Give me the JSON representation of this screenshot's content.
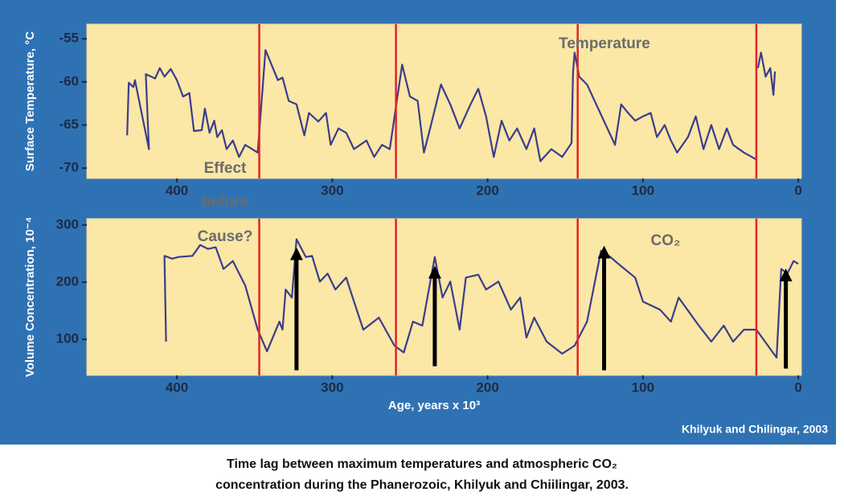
{
  "chart_data": [
    {
      "type": "line",
      "ylabel": "Surface Temperature, °C",
      "xlim": [
        458,
        -2
      ],
      "ylim": [
        -71.2,
        -53.3
      ],
      "xticks": [
        400,
        300,
        200,
        100,
        0
      ],
      "yticks": [
        -55,
        -60,
        -65,
        -70
      ],
      "plot_color": "#fbe7a6",
      "series": [
        {
          "color": "#3a3d8c",
          "x": [
            432,
            431,
            428,
            427,
            418,
            420,
            414,
            411,
            408,
            404,
            400,
            396,
            392,
            389,
            384,
            382,
            379,
            376,
            374,
            371,
            368,
            364,
            360,
            356,
            348,
            343,
            335,
            332,
            328,
            323,
            318,
            315,
            309,
            304,
            301,
            296,
            291,
            286,
            278,
            273,
            268,
            263,
            255,
            250,
            245,
            241,
            237,
            230,
            224,
            218,
            211,
            206,
            201,
            196,
            191,
            186,
            181,
            175,
            170,
            166,
            159,
            152,
            146,
            145,
            144,
            141,
            136,
            118,
            114,
            110,
            105,
            100,
            95,
            91,
            86,
            82,
            78,
            71,
            66,
            61,
            56,
            51,
            46,
            42,
            35,
            27,
            27,
            26,
            24,
            21,
            18,
            16,
            15
          ],
          "values": [
            -66.2,
            -60.1,
            -60.6,
            -59.8,
            -67.8,
            -59.1,
            -59.6,
            -58.4,
            -59.4,
            -58.5,
            -59.8,
            -61.7,
            -61.3,
            -65.7,
            -65.6,
            -63.1,
            -65.9,
            -64.5,
            -66.4,
            -65.6,
            -67.8,
            -66.8,
            -68.7,
            -67.3,
            -68.2,
            -56.3,
            -59.8,
            -59.5,
            -62.2,
            -62.6,
            -66.2,
            -63.6,
            -64.6,
            -63.6,
            -67.3,
            -65.4,
            -65.9,
            -67.8,
            -66.8,
            -68.7,
            -67.3,
            -67.8,
            -58.0,
            -61.7,
            -62.2,
            -68.2,
            -65.4,
            -60.3,
            -62.6,
            -65.4,
            -62.6,
            -60.8,
            -64.0,
            -68.7,
            -64.5,
            -66.8,
            -65.4,
            -67.8,
            -65.4,
            -69.2,
            -67.8,
            -68.7,
            -67.1,
            -58.9,
            -56.6,
            -59.4,
            -60.3,
            -67.3,
            -62.6,
            -63.5,
            -64.5,
            -64.0,
            -63.6,
            -66.4,
            -65.0,
            -66.8,
            -68.2,
            -66.4,
            -64.0,
            -67.8,
            -65.0,
            -67.8,
            -65.4,
            -67.3,
            -68.2,
            -69.0,
            null,
            -58.4,
            -56.6,
            -59.4,
            -58.4,
            -61.5,
            -58.8
          ]
        }
      ],
      "vlines": {
        "color": "#e0242a",
        "x": [
          347,
          259,
          142,
          27
        ]
      },
      "annotations": [
        "Temperature",
        "Effect",
        "before"
      ]
    },
    {
      "type": "line",
      "ylabel": "Volume Concentration, 10⁻⁴",
      "xlabel": "Age, years x 10³",
      "xlim": [
        458,
        -2
      ],
      "ylim": [
        37,
        311
      ],
      "xticks": [
        400,
        300,
        200,
        100,
        0
      ],
      "yticks": [
        300,
        200,
        100
      ],
      "plot_color": "#fbe7a6",
      "series": [
        {
          "color": "#3a3d8c",
          "x": [
            407,
            408,
            403,
            399,
            390,
            385,
            380,
            375,
            370,
            364,
            356,
            348,
            342,
            334,
            332,
            330,
            326,
            323,
            317,
            313,
            308,
            303,
            298,
            291,
            286,
            280,
            270,
            260,
            254,
            248,
            242,
            234,
            229,
            224,
            218,
            214,
            206,
            201,
            193,
            185,
            179,
            175,
            170,
            162,
            152,
            144,
            136,
            127,
            121,
            115,
            105,
            100,
            89,
            82,
            77,
            64,
            56,
            48,
            42,
            35,
            27,
            14,
            11,
            7,
            3,
            0
          ],
          "values": [
            96,
            246,
            241,
            244,
            246,
            265,
            258,
            261,
            223,
            237,
            194,
            117,
            79,
            131,
            117,
            187,
            173,
            275,
            244,
            246,
            201,
            215,
            187,
            208,
            166,
            117,
            138,
            89,
            77,
            131,
            124,
            244,
            173,
            201,
            117,
            208,
            213,
            187,
            201,
            152,
            173,
            103,
            138,
            96,
            75,
            89,
            131,
            255,
            244,
            230,
            208,
            166,
            152,
            131,
            173,
            124,
            96,
            124,
            96,
            117,
            117,
            68,
            223,
            215,
            237,
            232
          ]
        }
      ],
      "vlines": {
        "color": "#e0242a",
        "x": [
          347,
          259,
          142,
          27
        ]
      },
      "arrows": [
        {
          "x": 323,
          "y": [
            46,
            258
          ]
        },
        {
          "x": 234,
          "y": [
            53,
            226
          ]
        },
        {
          "x": 125,
          "y": [
            46,
            261
          ]
        },
        {
          "x": 8,
          "y": [
            49,
            221
          ]
        }
      ],
      "annotations": [
        "Cause?",
        "CO₂"
      ]
    }
  ],
  "credit": "Khilyuk and Chilingar, 2003",
  "caption": [
    "Time lag between maximum temperatures and atmospheric CO₂",
    "concentration during the Phanerozoic, Khilyuk and Chiilingar, 2003."
  ]
}
